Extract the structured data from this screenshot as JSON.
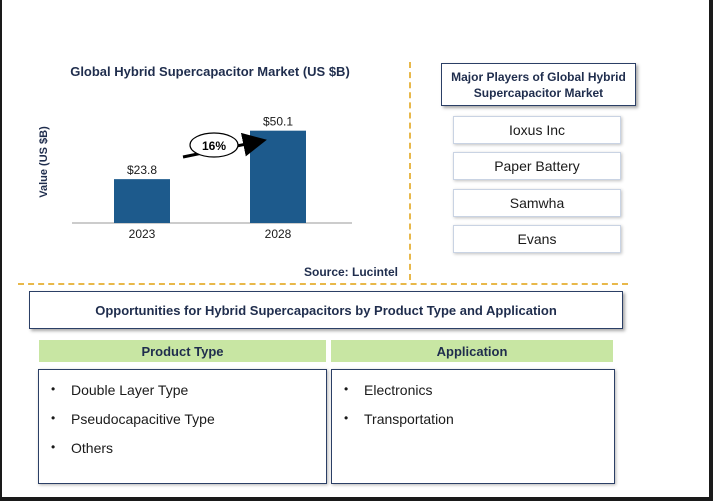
{
  "chart_data": {
    "type": "bar",
    "title": "Global Hybrid Supercapacitor Market (US $B)",
    "ylabel": "Value (US $B)",
    "xlabel": "",
    "categories": [
      "2023",
      "2028"
    ],
    "values": [
      23.8,
      50.1
    ],
    "value_labels": [
      "$23.8",
      "$50.1"
    ],
    "ylim": [
      0,
      70
    ],
    "grid": false,
    "bar_color": "#1d5a8c",
    "annotation": {
      "text": "16%",
      "from": "2023",
      "to": "2028"
    },
    "source": "Source: Lucintel"
  },
  "players": {
    "title": "Major Players of Global Hybrid Supercapacitor Market",
    "items": [
      "Ioxus Inc",
      "Paper Battery",
      "Samwha",
      "Evans"
    ]
  },
  "opportunities": {
    "title": "Opportunities for Hybrid Supercapacitors by Product Type and Application",
    "columns": [
      {
        "heading": "Product Type",
        "items": [
          "Double Layer Type",
          "Pseudocapacitive Type",
          "Others"
        ]
      },
      {
        "heading": "Application",
        "items": [
          "Electronics",
          "Transportation"
        ]
      }
    ],
    "bullet": "•"
  },
  "colors": {
    "header_green": "#c8e6a3",
    "navy": "#1f2d4d",
    "separator": "#e8b84a"
  }
}
